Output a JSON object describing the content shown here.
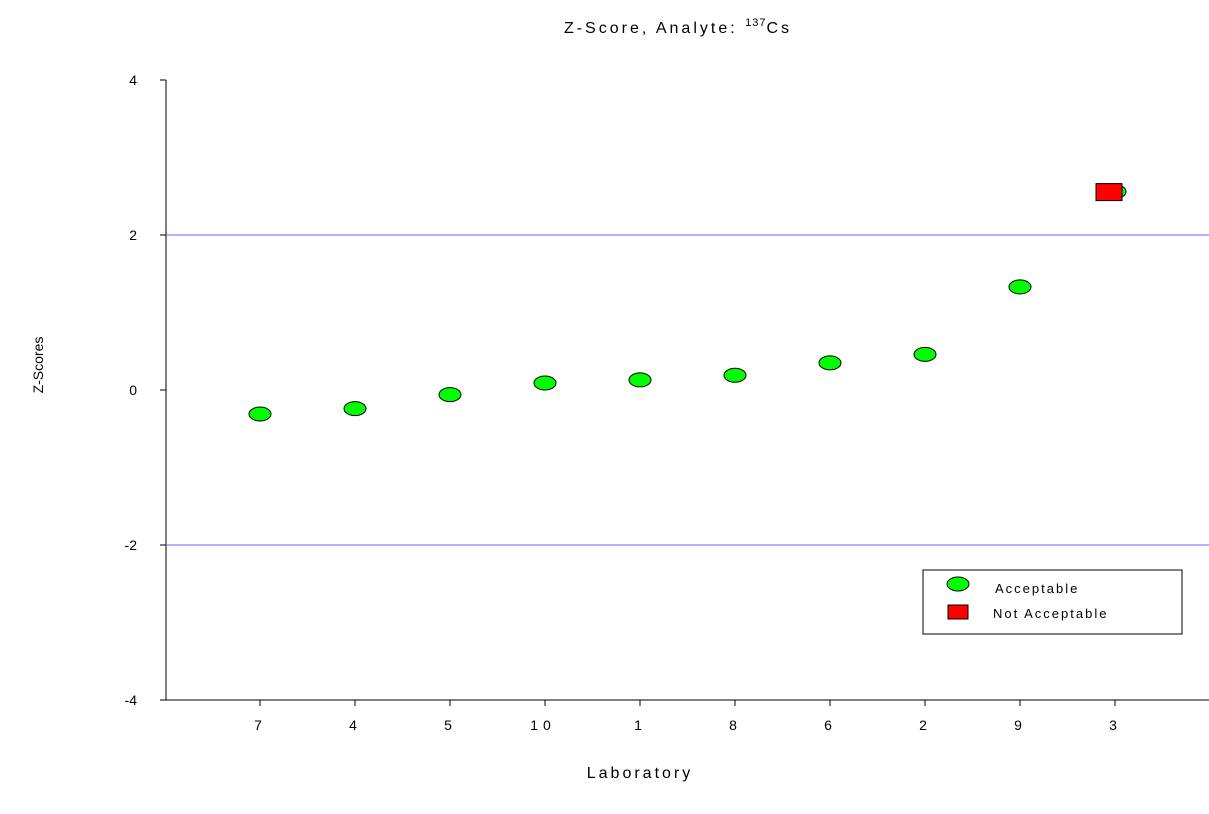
{
  "chart_data": {
    "type": "scatter",
    "title": {
      "main": "Z-Score, Analyte: ",
      "isotope_mass": "137",
      "element": "Cs"
    },
    "xlabel": "Laboratory",
    "ylabel": "Z-Scores",
    "ylim": [
      -4,
      4
    ],
    "yticks": [
      "4",
      "2",
      "0",
      "-2",
      "-4"
    ],
    "ytick_values": [
      4,
      2,
      0,
      -2,
      -4
    ],
    "categories": [
      "7",
      "4",
      "5",
      "10",
      "1",
      "8",
      "6",
      "2",
      "9",
      "3"
    ],
    "reference_lines": [
      2,
      -2
    ],
    "reference_line_color": "#6666ff",
    "series": [
      {
        "name": "Acceptable",
        "marker": "ellipse",
        "color": "#00ff00",
        "values": [
          -0.31,
          -0.24,
          -0.06,
          0.09,
          0.13,
          0.19,
          0.35,
          0.46,
          1.33,
          2.56
        ]
      },
      {
        "name": "Not Acceptable",
        "marker": "square",
        "color": "#ff0000",
        "values": [
          null,
          null,
          null,
          null,
          null,
          null,
          null,
          null,
          null,
          2.56
        ]
      }
    ],
    "legend": {
      "position": "bottom-right",
      "items": [
        "Acceptable",
        "Not Acceptable"
      ]
    },
    "grid": false
  }
}
